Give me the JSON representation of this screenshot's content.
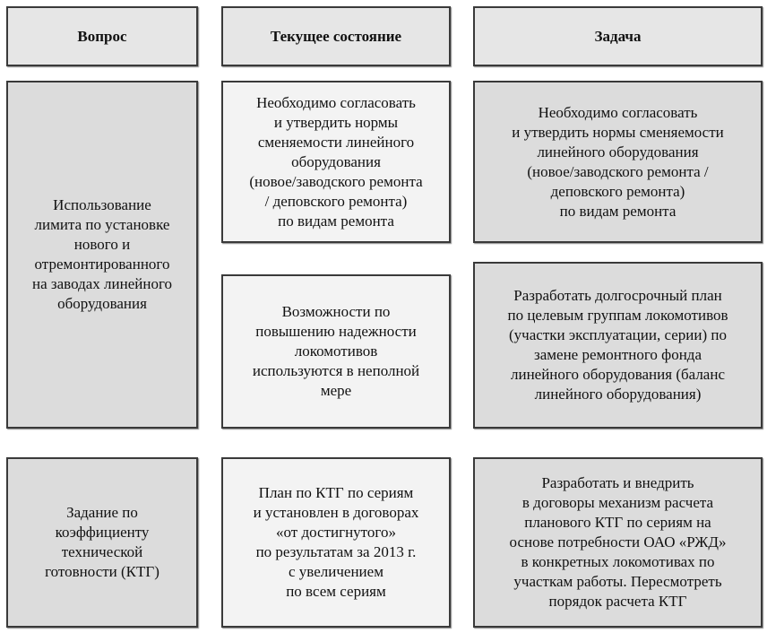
{
  "headers": [
    "Вопрос",
    "Текущее состояние",
    "Задача"
  ],
  "rows": [
    {
      "question": "Использование\nлимита по установке\nнового и\nотремонтированного\nна заводах линейного\nоборудования",
      "states": [
        "Необходимо согласовать\nи утвердить нормы\nсменяемости линейного\nоборудования\n(новое/заводского ремонта\n/ деповского ремонта)\nпо видам ремонта",
        "Возможности по\nповышению надежности\nлокомотивов\nиспользуются в неполной\nмере"
      ],
      "tasks": [
        "Необходимо согласовать\nи утвердить нормы сменяемости\nлинейного оборудования\n(новое/заводского ремонта /\nдеповского ремонта)\nпо видам ремонта",
        "Разработать долгосрочный план\nпо целевым группам локомотивов\n(участки эксплуатации, серии) по\nзамене ремонтного фонда\nлинейного оборудования (баланс\nлинейного оборудования)"
      ]
    },
    {
      "question": "Задание по\nкоэффициенту\nтехнической\nготовности (КТГ)",
      "states": [
        "План по КТГ по сериям\nи установлен в договорах\n«от достигнутого»\nпо результатам за 2013 г.\nс увеличением\nпо всем сериям"
      ],
      "tasks": [
        "Разработать и внедрить\nв договоры механизм расчета\nпланового КТГ по сериям на\nоснове потребности ОАО «РЖД»\nв конкретных локомотивах по\nучасткам работы. Пересмотреть\nпорядок расчета КТГ"
      ]
    }
  ]
}
